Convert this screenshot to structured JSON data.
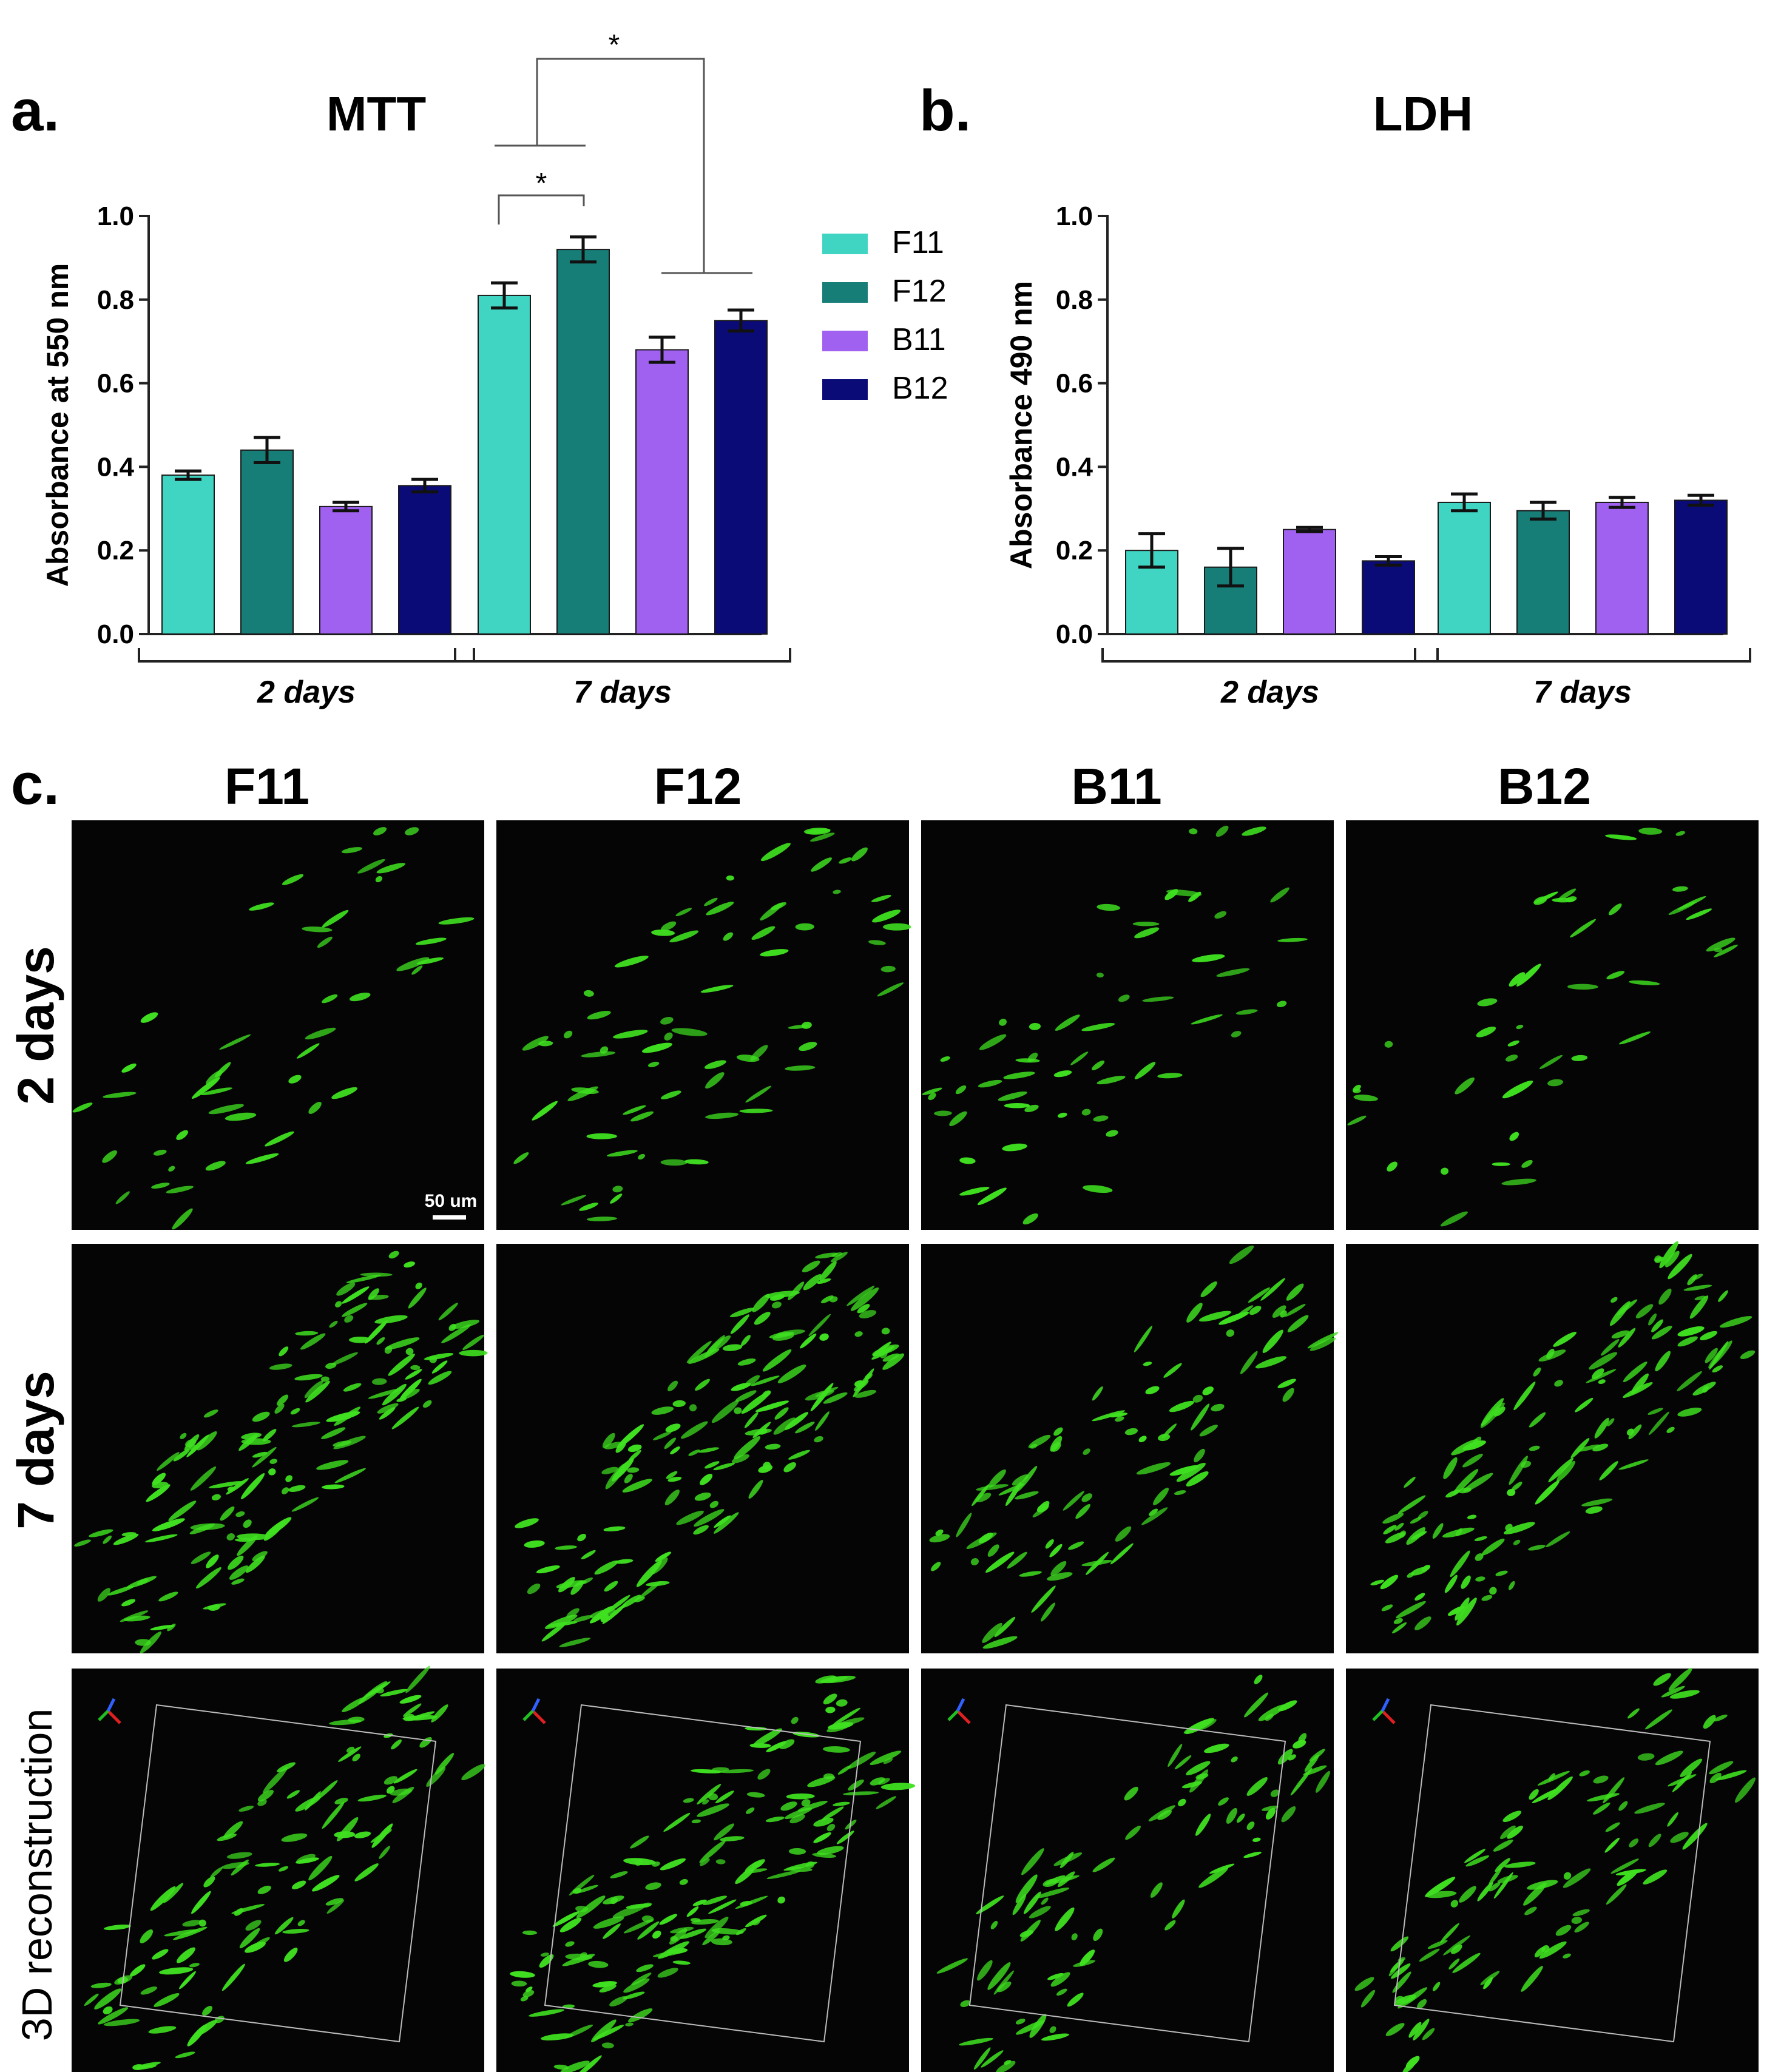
{
  "panels": {
    "a_letter": "a.",
    "b_letter": "b.",
    "c_letter": "c."
  },
  "legend": [
    {
      "label": "F11",
      "color": "#3fd5c2"
    },
    {
      "label": "F12",
      "color": "#167d77"
    },
    {
      "label": "B11",
      "color": "#a060f0"
    },
    {
      "label": "B12",
      "color": "#0b0b78"
    }
  ],
  "chart_data": [
    {
      "type": "bar",
      "title": "MTT",
      "ylabel": "Absorbance at 550 nm",
      "xlabel": "",
      "ylim": [
        0,
        1.0
      ],
      "yticks": [
        "0.0",
        "0.2",
        "0.4",
        "0.6",
        "0.8",
        "1.0"
      ],
      "groups": [
        "2 days",
        "7 days"
      ],
      "series": [
        {
          "name": "F11",
          "values": [
            0.38,
            0.81
          ],
          "errors": [
            0.01,
            0.03
          ]
        },
        {
          "name": "F12",
          "values": [
            0.44,
            0.92
          ],
          "errors": [
            0.03,
            0.03
          ]
        },
        {
          "name": "B11",
          "values": [
            0.305,
            0.68
          ],
          "errors": [
            0.01,
            0.03
          ]
        },
        {
          "name": "B12",
          "values": [
            0.355,
            0.75
          ],
          "errors": [
            0.015,
            0.025
          ]
        }
      ],
      "annotations": [
        "*",
        "*"
      ]
    },
    {
      "type": "bar",
      "title": "LDH",
      "ylabel": "Absorbance 490 nm",
      "xlabel": "",
      "ylim": [
        0,
        1.0
      ],
      "yticks": [
        "0.0",
        "0.2",
        "0.4",
        "0.6",
        "0.8",
        "1.0"
      ],
      "groups": [
        "2 days",
        "7 days"
      ],
      "series": [
        {
          "name": "F11",
          "values": [
            0.2,
            0.315
          ],
          "errors": [
            0.04,
            0.02
          ]
        },
        {
          "name": "F12",
          "values": [
            0.16,
            0.295
          ],
          "errors": [
            0.045,
            0.02
          ]
        },
        {
          "name": "B11",
          "values": [
            0.25,
            0.315
          ],
          "errors": [
            0.005,
            0.012
          ]
        },
        {
          "name": "B12",
          "values": [
            0.175,
            0.32
          ],
          "errors": [
            0.01,
            0.012
          ]
        }
      ]
    }
  ],
  "micrographs": {
    "columns": [
      "F11",
      "F12",
      "B11",
      "B12"
    ],
    "rows": [
      "2 days",
      "7 days",
      "3D reconstruction"
    ],
    "scale_bar": "50 um",
    "background": "#050505",
    "cell_color": "#3fe020"
  }
}
